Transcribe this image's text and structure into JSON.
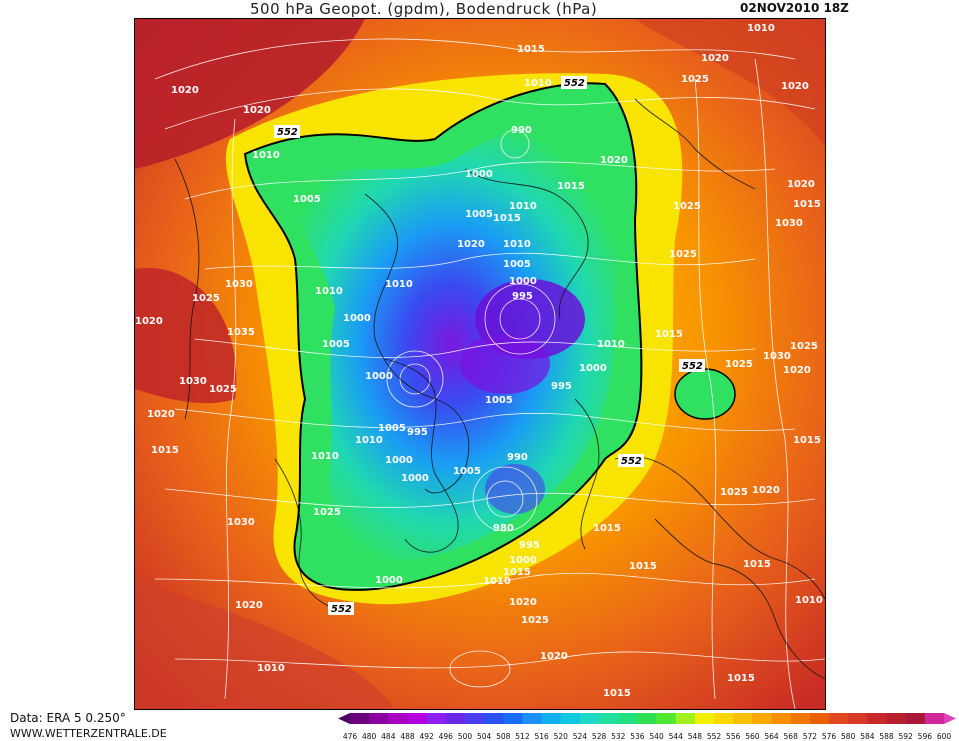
{
  "header": {
    "title": "500 hPa Geopot. (gpdm), Bodendruck (hPa)",
    "datetime": "02NOV2010 18Z"
  },
  "footer": {
    "data_source": "Data: ERA 5 0.250°",
    "website": "WWW.WETTERZENTRALE.DE"
  },
  "map": {
    "contour_552_label": "552",
    "pressure_labels": [
      {
        "text": "1010"
      },
      {
        "text": "1015"
      },
      {
        "text": "1020"
      },
      {
        "text": "1025"
      },
      {
        "text": "1020"
      },
      {
        "text": "1020"
      },
      {
        "text": "1020"
      },
      {
        "text": "1010"
      },
      {
        "text": "990"
      },
      {
        "text": "1010"
      },
      {
        "text": "1020"
      },
      {
        "text": "1015"
      },
      {
        "text": "1020"
      },
      {
        "text": "1015"
      },
      {
        "text": "1000"
      },
      {
        "text": "1005"
      },
      {
        "text": "1005"
      },
      {
        "text": "1015"
      },
      {
        "text": "1010"
      },
      {
        "text": "1025"
      },
      {
        "text": "1030"
      },
      {
        "text": "1020"
      },
      {
        "text": "1010"
      },
      {
        "text": "1005"
      },
      {
        "text": "1000"
      },
      {
        "text": "995"
      },
      {
        "text": "1030"
      },
      {
        "text": "1010"
      },
      {
        "text": "1010"
      },
      {
        "text": "1025"
      },
      {
        "text": "1035"
      },
      {
        "text": "1000"
      },
      {
        "text": "1020"
      },
      {
        "text": "1025"
      },
      {
        "text": "1005"
      },
      {
        "text": "1015"
      },
      {
        "text": "1010"
      },
      {
        "text": "1030"
      },
      {
        "text": "1000"
      },
      {
        "text": "1030"
      },
      {
        "text": "1025"
      },
      {
        "text": "1025"
      },
      {
        "text": "995"
      },
      {
        "text": "1020"
      },
      {
        "text": "1000"
      },
      {
        "text": "1005"
      },
      {
        "text": "1025"
      },
      {
        "text": "1005"
      },
      {
        "text": "1020"
      },
      {
        "text": "995"
      },
      {
        "text": "1015"
      },
      {
        "text": "1015"
      },
      {
        "text": "1010"
      },
      {
        "text": "1010"
      },
      {
        "text": "1000"
      },
      {
        "text": "990"
      },
      {
        "text": "1000"
      },
      {
        "text": "1005"
      },
      {
        "text": "1025"
      },
      {
        "text": "1020"
      },
      {
        "text": "1030"
      },
      {
        "text": "1025"
      },
      {
        "text": "1015"
      },
      {
        "text": "980"
      },
      {
        "text": "995"
      },
      {
        "text": "1000"
      },
      {
        "text": "1015"
      },
      {
        "text": "1010"
      },
      {
        "text": "1015"
      },
      {
        "text": "1000"
      },
      {
        "text": "1010"
      },
      {
        "text": "1020"
      },
      {
        "text": "1020"
      },
      {
        "text": "1015"
      },
      {
        "text": "1025"
      },
      {
        "text": "1020"
      },
      {
        "text": "1010"
      },
      {
        "text": "1015"
      },
      {
        "text": "1015"
      }
    ]
  },
  "colorbar": {
    "ticks": [
      "476",
      "480",
      "484",
      "488",
      "492",
      "496",
      "500",
      "504",
      "508",
      "512",
      "516",
      "520",
      "524",
      "528",
      "532",
      "536",
      "540",
      "544",
      "548",
      "552",
      "556",
      "560",
      "564",
      "568",
      "572",
      "576",
      "580",
      "584",
      "588",
      "592",
      "596",
      "600"
    ],
    "colors": [
      "#4b0059",
      "#6a007e",
      "#8a00a0",
      "#a800c0",
      "#b400e0",
      "#8c20f0",
      "#6a28e6",
      "#4a3cf0",
      "#2a50f0",
      "#1a6cf8",
      "#1a90f8",
      "#10b0f0",
      "#10c8e0",
      "#20d8c8",
      "#20e0a0",
      "#20e080",
      "#30e050",
      "#50e830",
      "#a0f020",
      "#f0f000",
      "#f8d800",
      "#f8c000",
      "#f8a800",
      "#f89000",
      "#f07800",
      "#e86000",
      "#e04820",
      "#d83828",
      "#c82828",
      "#b82030",
      "#a81838",
      "#d02898",
      "#e040c0"
    ]
  }
}
